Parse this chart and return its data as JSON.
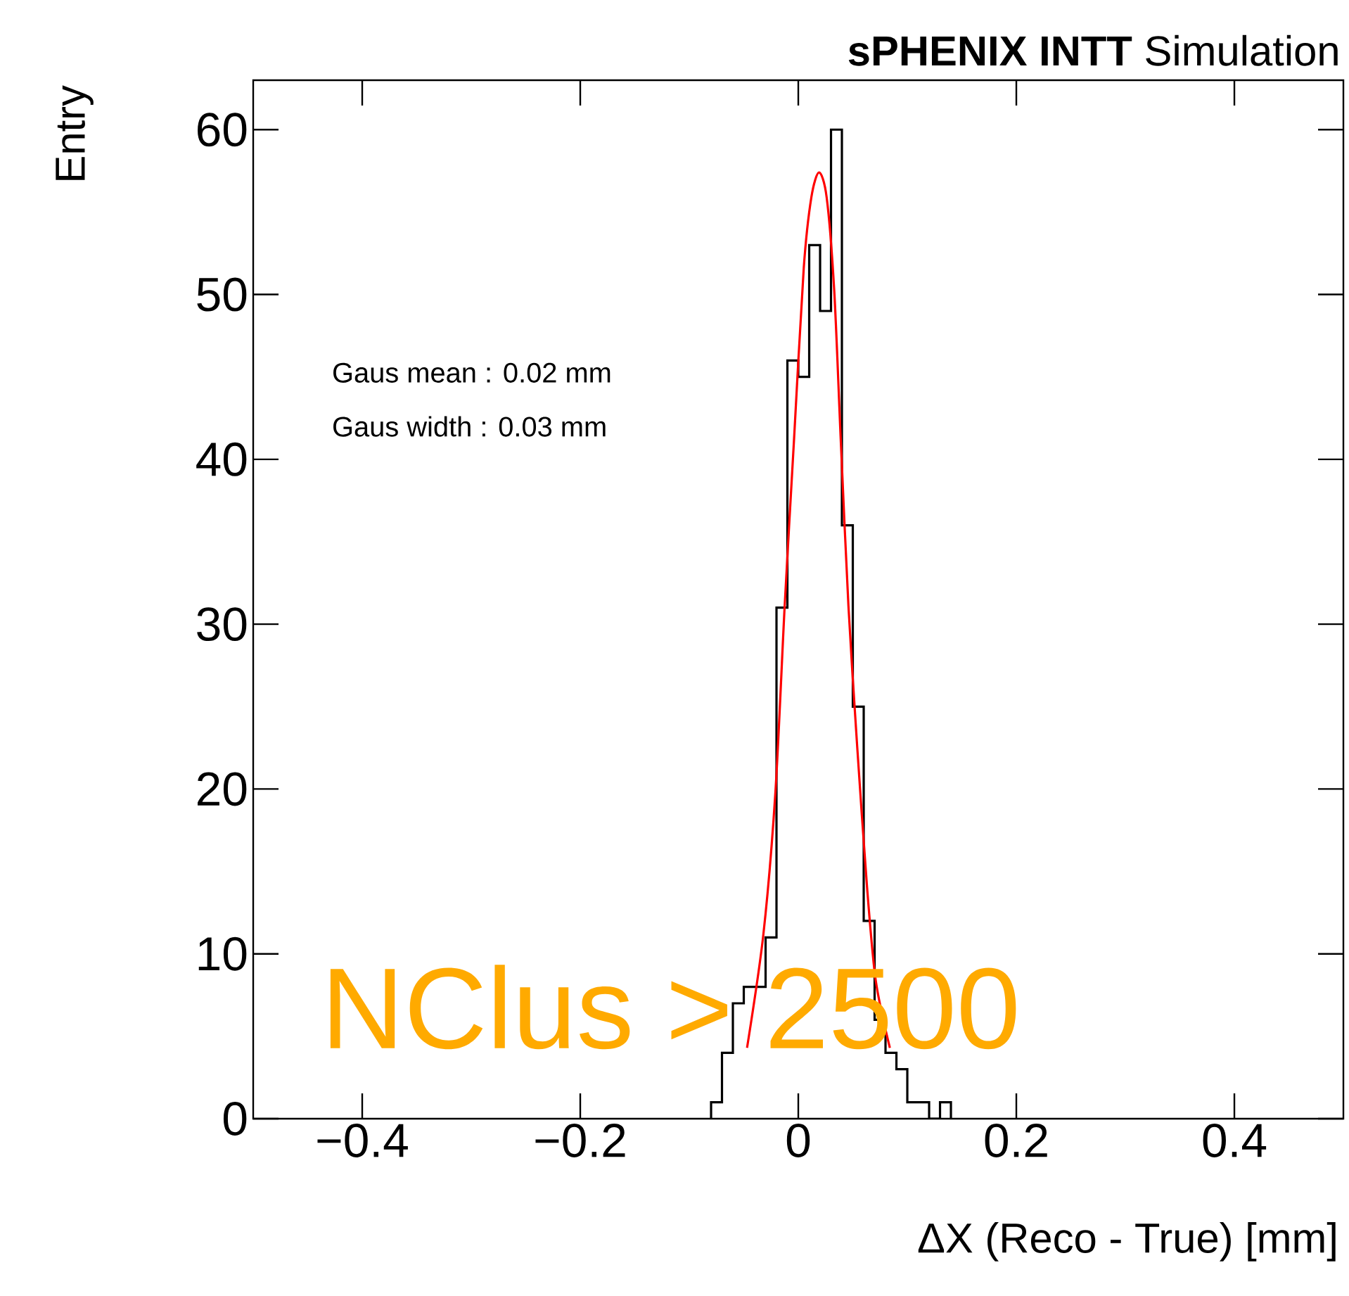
{
  "chart_data": {
    "type": "histogram",
    "title": "**sPHENIX INTT** Simulation",
    "xlabel": "ΔX (Reco - True) [mm]",
    "ylabel": "Entry",
    "annotations": [
      "Gaus mean  : 0.02 mm",
      "Gaus width : 0.03 mm",
      "NClus > 2500"
    ],
    "color": "#000000",
    "bins": [
      -0.08,
      -0.07,
      -0.06,
      -0.05,
      -0.04,
      -0.03,
      -0.02,
      -0.01,
      0.0,
      0.01,
      0.02,
      0.03,
      0.04,
      0.05,
      0.06,
      0.07,
      0.08,
      0.09,
      0.1,
      0.11,
      0.12,
      0.13,
      0.14
    ],
    "values": [
      1,
      4,
      7,
      8,
      8,
      11,
      31,
      46,
      45,
      53,
      49,
      60,
      36,
      25,
      12,
      6,
      4,
      3,
      1,
      1,
      0,
      1
    ],
    "series": [
      {
        "type": "line",
        "color": "#ff0000",
        "x": [
          -0.047,
          -0.032,
          -0.021,
          -0.0125,
          -0.004,
          0.005,
          0.012,
          0.019,
          0.026,
          0.033,
          0.039,
          0.046,
          0.054,
          0.063,
          0.071,
          0.084
        ],
        "values": [
          4.3,
          11.2,
          19.8,
          31.1,
          41.1,
          51.6,
          55.9,
          57.4,
          55.9,
          50.2,
          41.1,
          31.1,
          22.6,
          14.1,
          8.4,
          4.3
        ]
      }
    ],
    "xlim": [
      -0.5,
      0.5
    ],
    "ylim": [
      0,
      63
    ],
    "xticks": [
      {
        "value": -0.4,
        "label": "−0.4"
      },
      {
        "value": -0.2,
        "label": "−0.2"
      },
      0,
      0.2,
      0.4
    ],
    "yticks": [
      0,
      10,
      20,
      30,
      40,
      50,
      60
    ],
    "grid": false
  }
}
